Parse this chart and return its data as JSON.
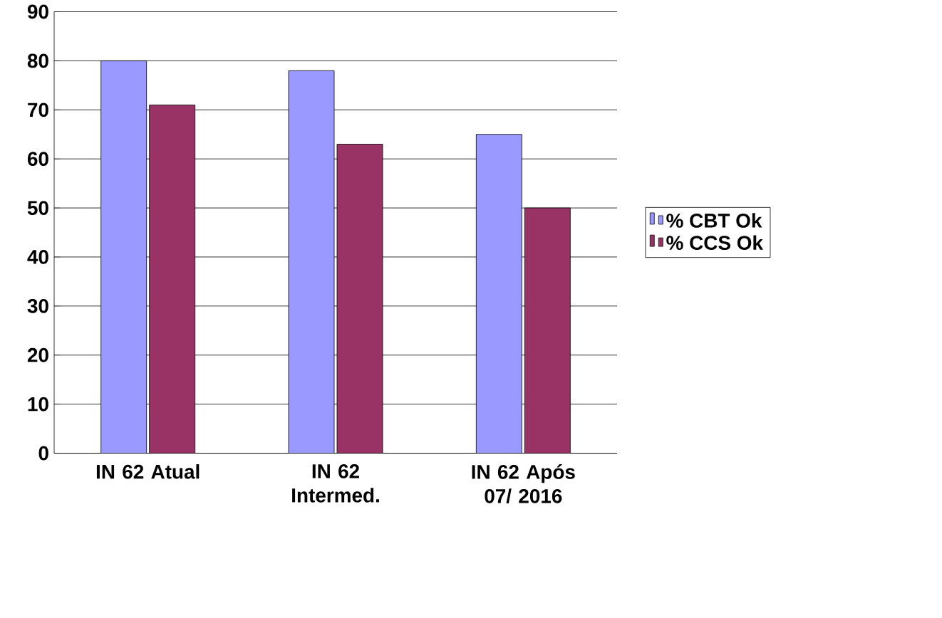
{
  "chart_data": {
    "type": "bar",
    "categories": [
      "IN 62 Atual",
      "IN 62 Intermed.",
      "IN 62 Após 07/ 2016"
    ],
    "series": [
      {
        "name": "% CBT Ok",
        "color": "#9999ff",
        "values": [
          80,
          78,
          65
        ]
      },
      {
        "name": "% CCS Ok",
        "color": "#993366",
        "values": [
          71,
          63,
          50
        ]
      }
    ],
    "ylim": [
      0,
      90
    ],
    "yticks": [
      0,
      10,
      20,
      30,
      40,
      50,
      60,
      70,
      80,
      90
    ],
    "grid": "y",
    "legend": "right"
  }
}
